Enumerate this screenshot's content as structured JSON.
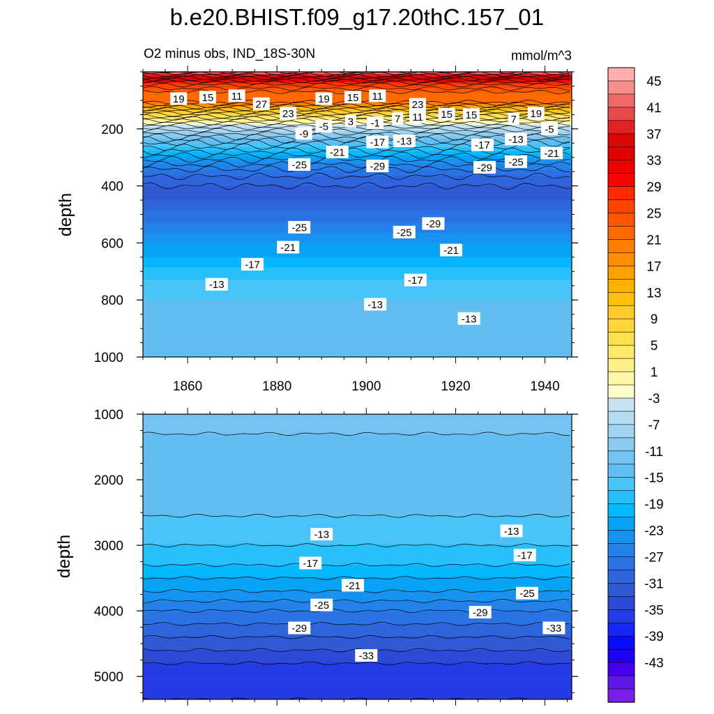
{
  "chart_data": {
    "type": "heatmap",
    "title": "b.e20.BHIST.f09_g17.20thC.157_01",
    "subtitle_left": "O2 minus obs, IND_18S-30N",
    "subtitle_right": "mmol/m^3",
    "units": "mmol/m^3",
    "x_range": [
      1850,
      1946
    ],
    "x_ticks": [
      1860,
      1880,
      1900,
      1920,
      1940
    ],
    "panels": [
      {
        "name": "upper",
        "ylabel": "depth",
        "ylim": [
          0,
          1000
        ],
        "y_ticks": [
          200,
          400,
          600,
          800,
          1000
        ],
        "profile": {
          "depth": [
            0,
            40,
            70,
            100,
            140,
            170,
            200,
            250,
            300,
            350,
            400,
            450,
            500,
            550,
            600,
            650,
            700,
            750,
            800,
            900,
            1000
          ],
          "value": [
            45,
            30,
            25,
            25,
            12,
            3,
            -4,
            -13,
            -20,
            -26,
            -29,
            -29,
            -26,
            -24,
            -21,
            -19,
            -16,
            -14,
            -13,
            -12,
            -12
          ]
        },
        "contour_labels": [
          {
            "text": "19",
            "x": 1858,
            "depth": 94
          },
          {
            "text": "15",
            "x": 1864.5,
            "depth": 89
          },
          {
            "text": "11",
            "x": 1871,
            "depth": 84
          },
          {
            "text": "27",
            "x": 1876.5,
            "depth": 112
          },
          {
            "text": "23",
            "x": 1882.5,
            "depth": 145
          },
          {
            "text": "19",
            "x": 1890.5,
            "depth": 94
          },
          {
            "text": "15",
            "x": 1897,
            "depth": 89
          },
          {
            "text": "11",
            "x": 1902.5,
            "depth": 84
          },
          {
            "text": "23",
            "x": 1911.5,
            "depth": 114
          },
          {
            "text": "3",
            "x": 1896.5,
            "depth": 173
          },
          {
            "text": "-1",
            "x": 1902,
            "depth": 179
          },
          {
            "text": "7",
            "x": 1907,
            "depth": 164
          },
          {
            "text": "11",
            "x": 1911.5,
            "depth": 158
          },
          {
            "text": "15",
            "x": 1918,
            "depth": 148
          },
          {
            "text": "15",
            "x": 1923.5,
            "depth": 150
          },
          {
            "text": "7",
            "x": 1933,
            "depth": 165
          },
          {
            "text": "19",
            "x": 1938,
            "depth": 145
          },
          {
            "text": "-5",
            "x": 1890.5,
            "depth": 191
          },
          {
            "text": "-9",
            "x": 1886,
            "depth": 216
          },
          {
            "text": "-5",
            "x": 1941,
            "depth": 200
          },
          {
            "text": "-21",
            "x": 1893.5,
            "depth": 281
          },
          {
            "text": "-17",
            "x": 1902.5,
            "depth": 246
          },
          {
            "text": "-13",
            "x": 1908.5,
            "depth": 242
          },
          {
            "text": "-17",
            "x": 1926,
            "depth": 256
          },
          {
            "text": "-13",
            "x": 1933.5,
            "depth": 236
          },
          {
            "text": "-21",
            "x": 1941.5,
            "depth": 285
          },
          {
            "text": "-25",
            "x": 1885,
            "depth": 325
          },
          {
            "text": "-29",
            "x": 1902.5,
            "depth": 330
          },
          {
            "text": "-29",
            "x": 1926.5,
            "depth": 335
          },
          {
            "text": "-25",
            "x": 1933.5,
            "depth": 315
          },
          {
            "text": "-25",
            "x": 1885,
            "depth": 545
          },
          {
            "text": "-25",
            "x": 1908.5,
            "depth": 562
          },
          {
            "text": "-29",
            "x": 1915,
            "depth": 532
          },
          {
            "text": "-21",
            "x": 1882.5,
            "depth": 615
          },
          {
            "text": "-21",
            "x": 1919,
            "depth": 625
          },
          {
            "text": "-17",
            "x": 1874.5,
            "depth": 675
          },
          {
            "text": "-17",
            "x": 1911,
            "depth": 730
          },
          {
            "text": "-13",
            "x": 1866.5,
            "depth": 745
          },
          {
            "text": "-13",
            "x": 1902,
            "depth": 815
          },
          {
            "text": "-13",
            "x": 1923,
            "depth": 865
          }
        ]
      },
      {
        "name": "lower",
        "ylabel": "depth",
        "ylim": [
          1000,
          5350
        ],
        "y_ticks": [
          1000,
          2000,
          3000,
          4000,
          5000
        ],
        "profile": {
          "depth": [
            1000,
            1300,
            1900,
            2550,
            2800,
            3000,
            3300,
            3700,
            4000,
            4300,
            4600,
            4900,
            5350
          ],
          "value": [
            -10,
            -11,
            -11,
            -13,
            -14,
            -15,
            -17,
            -21,
            -25,
            -28,
            -31,
            -34,
            -35
          ]
        },
        "contour_labels": [
          {
            "text": "-13",
            "x": 1890,
            "depth": 2830
          },
          {
            "text": "-13",
            "x": 1932.5,
            "depth": 2780
          },
          {
            "text": "-17",
            "x": 1887.5,
            "depth": 3270
          },
          {
            "text": "-17",
            "x": 1935.5,
            "depth": 3150
          },
          {
            "text": "-21",
            "x": 1897,
            "depth": 3610
          },
          {
            "text": "-25",
            "x": 1890,
            "depth": 3910
          },
          {
            "text": "-25",
            "x": 1936,
            "depth": 3730
          },
          {
            "text": "-29",
            "x": 1885,
            "depth": 4260
          },
          {
            "text": "-29",
            "x": 1925.5,
            "depth": 4020
          },
          {
            "text": "-33",
            "x": 1900,
            "depth": 4680
          },
          {
            "text": "-33",
            "x": 1942,
            "depth": 4260
          }
        ]
      }
    ],
    "colorbar": {
      "labels": [
        "45",
        "41",
        "37",
        "33",
        "29",
        "25",
        "21",
        "17",
        "13",
        "9",
        "5",
        "1",
        "-3",
        "-7",
        "-11",
        "-15",
        "-19",
        "-23",
        "-27",
        "-31",
        "-35",
        "-39",
        "-43"
      ],
      "levels_top_to_bottom": [
        45,
        43,
        41,
        39,
        37,
        35,
        33,
        31,
        29,
        27,
        25,
        23,
        21,
        19,
        17,
        15,
        13,
        11,
        9,
        7,
        5,
        3,
        1,
        -1,
        -3,
        -5,
        -7,
        -9,
        -11,
        -13,
        -15,
        -17,
        -19,
        -21,
        -23,
        -25,
        -27,
        -29,
        -31,
        -33,
        -35,
        -37,
        -39,
        -41,
        -43
      ],
      "colors": [
        "#ffafaf",
        "#f88d8d",
        "#ef6969",
        "#e84a4a",
        "#e02424",
        "#da0707",
        "#e10000",
        "#ef0000",
        "#ff0000",
        "#ff2a00",
        "#ff4400",
        "#ff5800",
        "#ff6a00",
        "#ff7d00",
        "#ff8f00",
        "#ffa000",
        "#ffb100",
        "#ffbf0f",
        "#ffcb2a",
        "#ffd63c",
        "#ffe04f",
        "#ffe96a",
        "#fff088",
        "#fff7a8",
        "#ffffcc",
        "#c7e3f2",
        "#b4dcf2",
        "#a0d4f0",
        "#8ccbf0",
        "#76c2f0",
        "#61bef0",
        "#49c3f8",
        "#28c0fb",
        "#04b8ff",
        "#06a3f5",
        "#1792f0",
        "#2382ea",
        "#2b72e4",
        "#2e65dc",
        "#3059d4",
        "#2d4ad6",
        "#253be4",
        "#1826f4",
        "#0a0cff",
        "#2000f0",
        "#4400e8",
        "#5f18e6",
        "#7a1fe9"
      ]
    }
  }
}
